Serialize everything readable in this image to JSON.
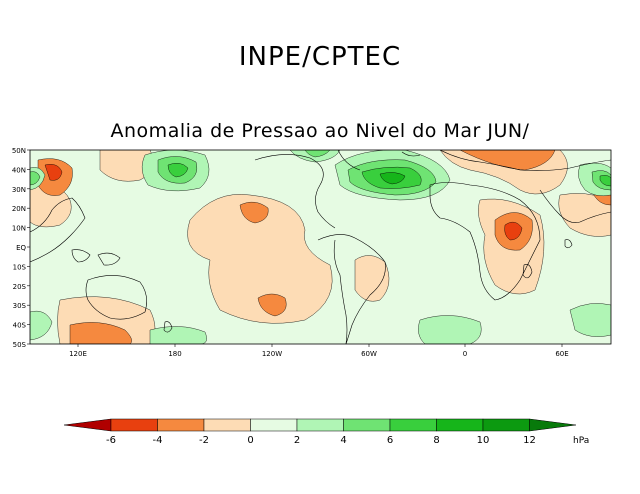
{
  "header": {
    "title": "INPE/CPTEC",
    "subtitle": "Anomalia de Pressao ao Nivel do Mar JUN/"
  },
  "axes": {
    "lat_labels": [
      "50N",
      "40N",
      "30N",
      "20N",
      "10N",
      "EQ",
      "10S",
      "20S",
      "30S",
      "40S",
      "50S"
    ],
    "lon_labels": [
      "120E",
      "180",
      "120W",
      "60W",
      "0",
      "60E"
    ]
  },
  "colorbar": {
    "ticks": [
      "-6",
      "-4",
      "-2",
      "0",
      "2",
      "4",
      "6",
      "8",
      "10",
      "12"
    ],
    "unit": "hPa",
    "colors": {
      "lt_m6": "#b00000",
      "m6_m4": "#e8400f",
      "m4_m2": "#f5893f",
      "m2_0": "#fddcb5",
      "0_2": "#e6fbe3",
      "2_4": "#b0f5b5",
      "4_6": "#6fe373",
      "6_8": "#39cf3d",
      "8_10": "#16b51a",
      "10_12": "#0c9a10",
      "gt_12": "#087a0b"
    }
  },
  "map_colors": {
    "background": "#e6fbe3",
    "coast": "#000000"
  }
}
